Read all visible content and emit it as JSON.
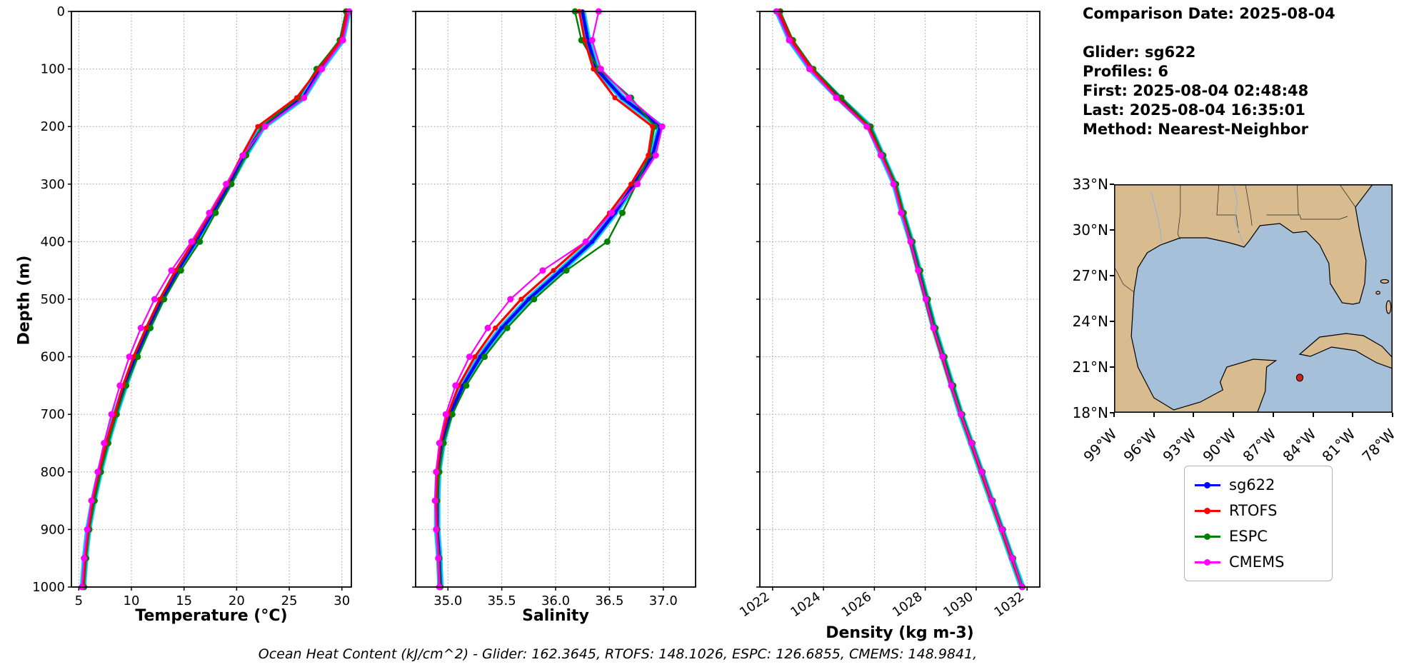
{
  "info": {
    "comparison_date": "Comparison Date: 2025-08-04",
    "glider": "Glider: sg622",
    "profiles": "Profiles: 6",
    "first": "First: 2025-08-04 02:48:48",
    "last": "Last: 2025-08-04 16:35:01",
    "method": "Method: Nearest-Neighbor"
  },
  "plots": {
    "ylabel": "Depth (m)"
  },
  "style": {
    "glider_band_color": "#00ccff"
  },
  "chart_data": [
    {
      "type": "line",
      "name": "temperature",
      "xlabel": "Temperature (°C)",
      "ylabel": "Depth (m)",
      "xlim": [
        4.3,
        30.9
      ],
      "ylim": [
        0,
        1000
      ],
      "x_ticks": [
        5,
        10,
        15,
        20,
        25,
        30
      ],
      "x_tick_labels": [
        "5",
        "10",
        "15",
        "20",
        "25",
        "30"
      ],
      "y_ticks": [
        0,
        100,
        200,
        300,
        400,
        500,
        600,
        700,
        800,
        900,
        1000
      ],
      "show_y_labels": true,
      "rotate_x_labels": false,
      "grid": "dotted",
      "depths": [
        0,
        50,
        100,
        150,
        200,
        250,
        300,
        350,
        400,
        450,
        500,
        550,
        600,
        650,
        700,
        750,
        800,
        850,
        900,
        950,
        1000
      ],
      "series": [
        {
          "name": "sg622",
          "color": "#0000ff",
          "line_width": 4.5,
          "marker_size": 3,
          "values": [
            30.6,
            30.0,
            28.0,
            26.3,
            22.5,
            20.8,
            19.3,
            17.7,
            16.1,
            14.4,
            12.9,
            11.6,
            10.4,
            9.4,
            8.5,
            7.7,
            7.0,
            6.4,
            5.9,
            5.6,
            5.4
          ]
        },
        {
          "name": "RTOFS",
          "color": "#ff0000",
          "line_width": 3.2,
          "marker_size": 3.5,
          "values": [
            30.5,
            29.9,
            27.8,
            25.7,
            22.0,
            20.5,
            19.1,
            17.5,
            15.9,
            14.2,
            12.7,
            11.4,
            10.2,
            9.2,
            8.4,
            7.6,
            6.9,
            6.3,
            5.9,
            5.6,
            5.4
          ]
        },
        {
          "name": "ESPC",
          "color": "#008000",
          "line_width": 2.4,
          "marker_size": 4.5,
          "values": [
            30.4,
            29.8,
            27.6,
            25.9,
            22.4,
            20.9,
            19.5,
            18.0,
            16.5,
            14.7,
            13.1,
            11.8,
            10.6,
            9.5,
            8.6,
            7.8,
            7.1,
            6.5,
            6.0,
            5.7,
            5.5
          ]
        },
        {
          "name": "CMEMS",
          "color": "#ff00ff",
          "line_width": 2.2,
          "marker_size": 4.5,
          "values": [
            30.7,
            30.1,
            28.1,
            26.4,
            22.7,
            20.6,
            19.0,
            17.4,
            15.7,
            13.8,
            12.2,
            10.9,
            9.8,
            8.9,
            8.1,
            7.4,
            6.8,
            6.2,
            5.8,
            5.5,
            5.3
          ]
        }
      ]
    },
    {
      "type": "line",
      "name": "salinity",
      "xlabel": "Salinity",
      "ylabel": "Depth (m)",
      "xlim": [
        34.7,
        37.3
      ],
      "ylim": [
        0,
        1000
      ],
      "x_ticks": [
        35.0,
        35.5,
        36.0,
        36.5,
        37.0
      ],
      "x_tick_labels": [
        "35.0",
        "35.5",
        "36.0",
        "36.5",
        "37.0"
      ],
      "y_ticks": [
        0,
        100,
        200,
        300,
        400,
        500,
        600,
        700,
        800,
        900,
        1000
      ],
      "show_y_labels": false,
      "rotate_x_labels": false,
      "grid": "dotted",
      "depths": [
        0,
        50,
        100,
        150,
        200,
        250,
        300,
        350,
        400,
        450,
        500,
        550,
        600,
        650,
        700,
        750,
        800,
        850,
        900,
        950,
        1000
      ],
      "series": [
        {
          "name": "sg622",
          "color": "#0000ff",
          "line_width": 4.5,
          "marker_size": 3,
          "values": [
            36.25,
            36.3,
            36.38,
            36.62,
            36.97,
            36.9,
            36.73,
            36.55,
            36.34,
            36.05,
            35.75,
            35.5,
            35.3,
            35.14,
            35.02,
            34.95,
            34.91,
            34.9,
            34.9,
            34.92,
            34.93
          ]
        },
        {
          "name": "RTOFS",
          "color": "#ff0000",
          "line_width": 3.2,
          "marker_size": 3.5,
          "values": [
            36.22,
            36.27,
            36.35,
            36.55,
            36.9,
            36.86,
            36.7,
            36.5,
            36.28,
            35.98,
            35.68,
            35.44,
            35.25,
            35.1,
            35.0,
            34.93,
            34.9,
            34.89,
            34.9,
            34.91,
            34.92
          ]
        },
        {
          "name": "ESPC",
          "color": "#008000",
          "line_width": 2.4,
          "marker_size": 4.5,
          "values": [
            36.18,
            36.24,
            36.4,
            36.7,
            36.92,
            36.87,
            36.75,
            36.62,
            36.48,
            36.1,
            35.8,
            35.55,
            35.34,
            35.17,
            35.04,
            34.96,
            34.92,
            34.9,
            34.9,
            34.92,
            34.93
          ]
        },
        {
          "name": "CMEMS",
          "color": "#ff00ff",
          "line_width": 2.2,
          "marker_size": 4.5,
          "values": [
            36.4,
            36.34,
            36.42,
            36.68,
            36.99,
            36.93,
            36.76,
            36.52,
            36.28,
            35.88,
            35.58,
            35.37,
            35.2,
            35.07,
            34.98,
            34.92,
            34.89,
            34.88,
            34.89,
            34.91,
            34.92
          ]
        }
      ]
    },
    {
      "type": "line",
      "name": "density",
      "xlabel": "Density (kg m-3)",
      "ylabel": "Depth (m)",
      "xlim": [
        1021.5,
        1032.5
      ],
      "ylim": [
        0,
        1000
      ],
      "x_ticks": [
        1022,
        1024,
        1026,
        1028,
        1030,
        1032
      ],
      "x_tick_labels": [
        "1022",
        "1024",
        "1026",
        "1028",
        "1030",
        "1032"
      ],
      "y_ticks": [
        0,
        100,
        200,
        300,
        400,
        500,
        600,
        700,
        800,
        900,
        1000
      ],
      "show_y_labels": false,
      "rotate_x_labels": true,
      "grid": "dotted",
      "depths": [
        0,
        50,
        100,
        150,
        200,
        250,
        300,
        350,
        400,
        450,
        500,
        550,
        600,
        650,
        700,
        750,
        800,
        850,
        900,
        950,
        1000
      ],
      "series": [
        {
          "name": "sg622",
          "color": "#0000ff",
          "line_width": 4.5,
          "marker_size": 3,
          "values": [
            1022.2,
            1022.7,
            1023.5,
            1024.6,
            1025.8,
            1026.3,
            1026.8,
            1027.1,
            1027.45,
            1027.75,
            1028.05,
            1028.35,
            1028.7,
            1029.05,
            1029.4,
            1029.8,
            1030.2,
            1030.6,
            1031.0,
            1031.4,
            1031.8
          ]
        },
        {
          "name": "RTOFS",
          "color": "#ff0000",
          "line_width": 3.2,
          "marker_size": 3.5,
          "values": [
            1022.25,
            1022.75,
            1023.55,
            1024.55,
            1025.75,
            1026.28,
            1026.78,
            1027.08,
            1027.4,
            1027.7,
            1028.0,
            1028.3,
            1028.65,
            1029.0,
            1029.38,
            1029.78,
            1030.18,
            1030.58,
            1030.98,
            1031.38,
            1031.78
          ]
        },
        {
          "name": "ESPC",
          "color": "#008000",
          "line_width": 2.4,
          "marker_size": 4.5,
          "values": [
            1022.3,
            1022.8,
            1023.6,
            1024.7,
            1025.85,
            1026.35,
            1026.85,
            1027.15,
            1027.5,
            1027.8,
            1028.1,
            1028.4,
            1028.75,
            1029.1,
            1029.45,
            1029.85,
            1030.25,
            1030.65,
            1031.05,
            1031.45,
            1031.82
          ]
        },
        {
          "name": "CMEMS",
          "color": "#ff00ff",
          "line_width": 2.2,
          "marker_size": 4.5,
          "values": [
            1022.15,
            1022.65,
            1023.45,
            1024.5,
            1025.7,
            1026.25,
            1026.75,
            1027.05,
            1027.42,
            1027.72,
            1028.02,
            1028.32,
            1028.68,
            1029.02,
            1029.4,
            1029.82,
            1030.22,
            1030.62,
            1031.02,
            1031.42,
            1031.8
          ]
        }
      ]
    }
  ],
  "map": {
    "lat_ticks": [
      "33°N",
      "30°N",
      "27°N",
      "24°N",
      "21°N",
      "18°N"
    ],
    "lon_ticks": [
      "99°W",
      "96°W",
      "93°W",
      "90°W",
      "87°W",
      "84°W",
      "81°W",
      "78°W"
    ],
    "extent": {
      "lon_w_min": 99,
      "lon_w_max": 78,
      "lat_n_min": 18,
      "lat_n_max": 33
    },
    "marker": {
      "lon_w": 85.0,
      "lat_n": 20.3
    },
    "marker_color": "#cc2222",
    "land_color": "#d9bb90",
    "water_color": "#a7c0da"
  },
  "legend": {
    "items": [
      {
        "label": "sg622",
        "color": "#0000ff"
      },
      {
        "label": "RTOFS",
        "color": "#ff0000"
      },
      {
        "label": "ESPC",
        "color": "#008000"
      },
      {
        "label": "CMEMS",
        "color": "#ff00ff"
      }
    ]
  },
  "footer": {
    "ohc_text": "Ocean Heat Content (kJ/cm^2) - Glider: 162.3645,  RTOFS: 148.1026,  ESPC: 126.6855,  CMEMS: 148.9841,"
  }
}
